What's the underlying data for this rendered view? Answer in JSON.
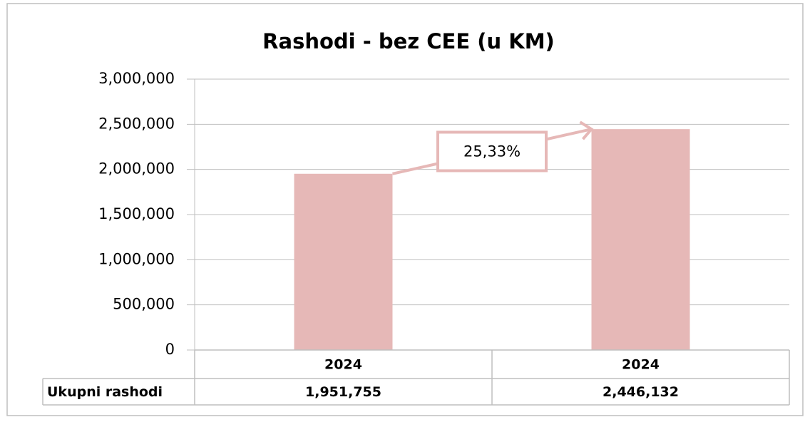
{
  "chart_data": {
    "type": "bar",
    "title": "Rashodi - bez CEE (u KM)",
    "categories": [
      "2024",
      "2024"
    ],
    "series": [
      {
        "name": "Ukupni rashodi",
        "color": "#e6b8b7",
        "values": [
          1951755,
          2446132
        ],
        "value_labels": [
          "1,951,755",
          "2,446,132"
        ]
      }
    ],
    "annotation": "25,33%",
    "ylim": [
      0,
      3000000
    ],
    "yticks": [
      0,
      {
        "value": 500000,
        "label": "500,000"
      },
      {
        "value": 1000000,
        "label": "1,000,000"
      },
      {
        "value": 1500000,
        "label": "1,500,000"
      },
      {
        "value": 2000000,
        "label": "2,000,000"
      },
      {
        "value": 2500000,
        "label": "2,500,000"
      },
      {
        "value": 3000000,
        "label": "3,000,000"
      }
    ],
    "grid": true,
    "data_table": true
  }
}
